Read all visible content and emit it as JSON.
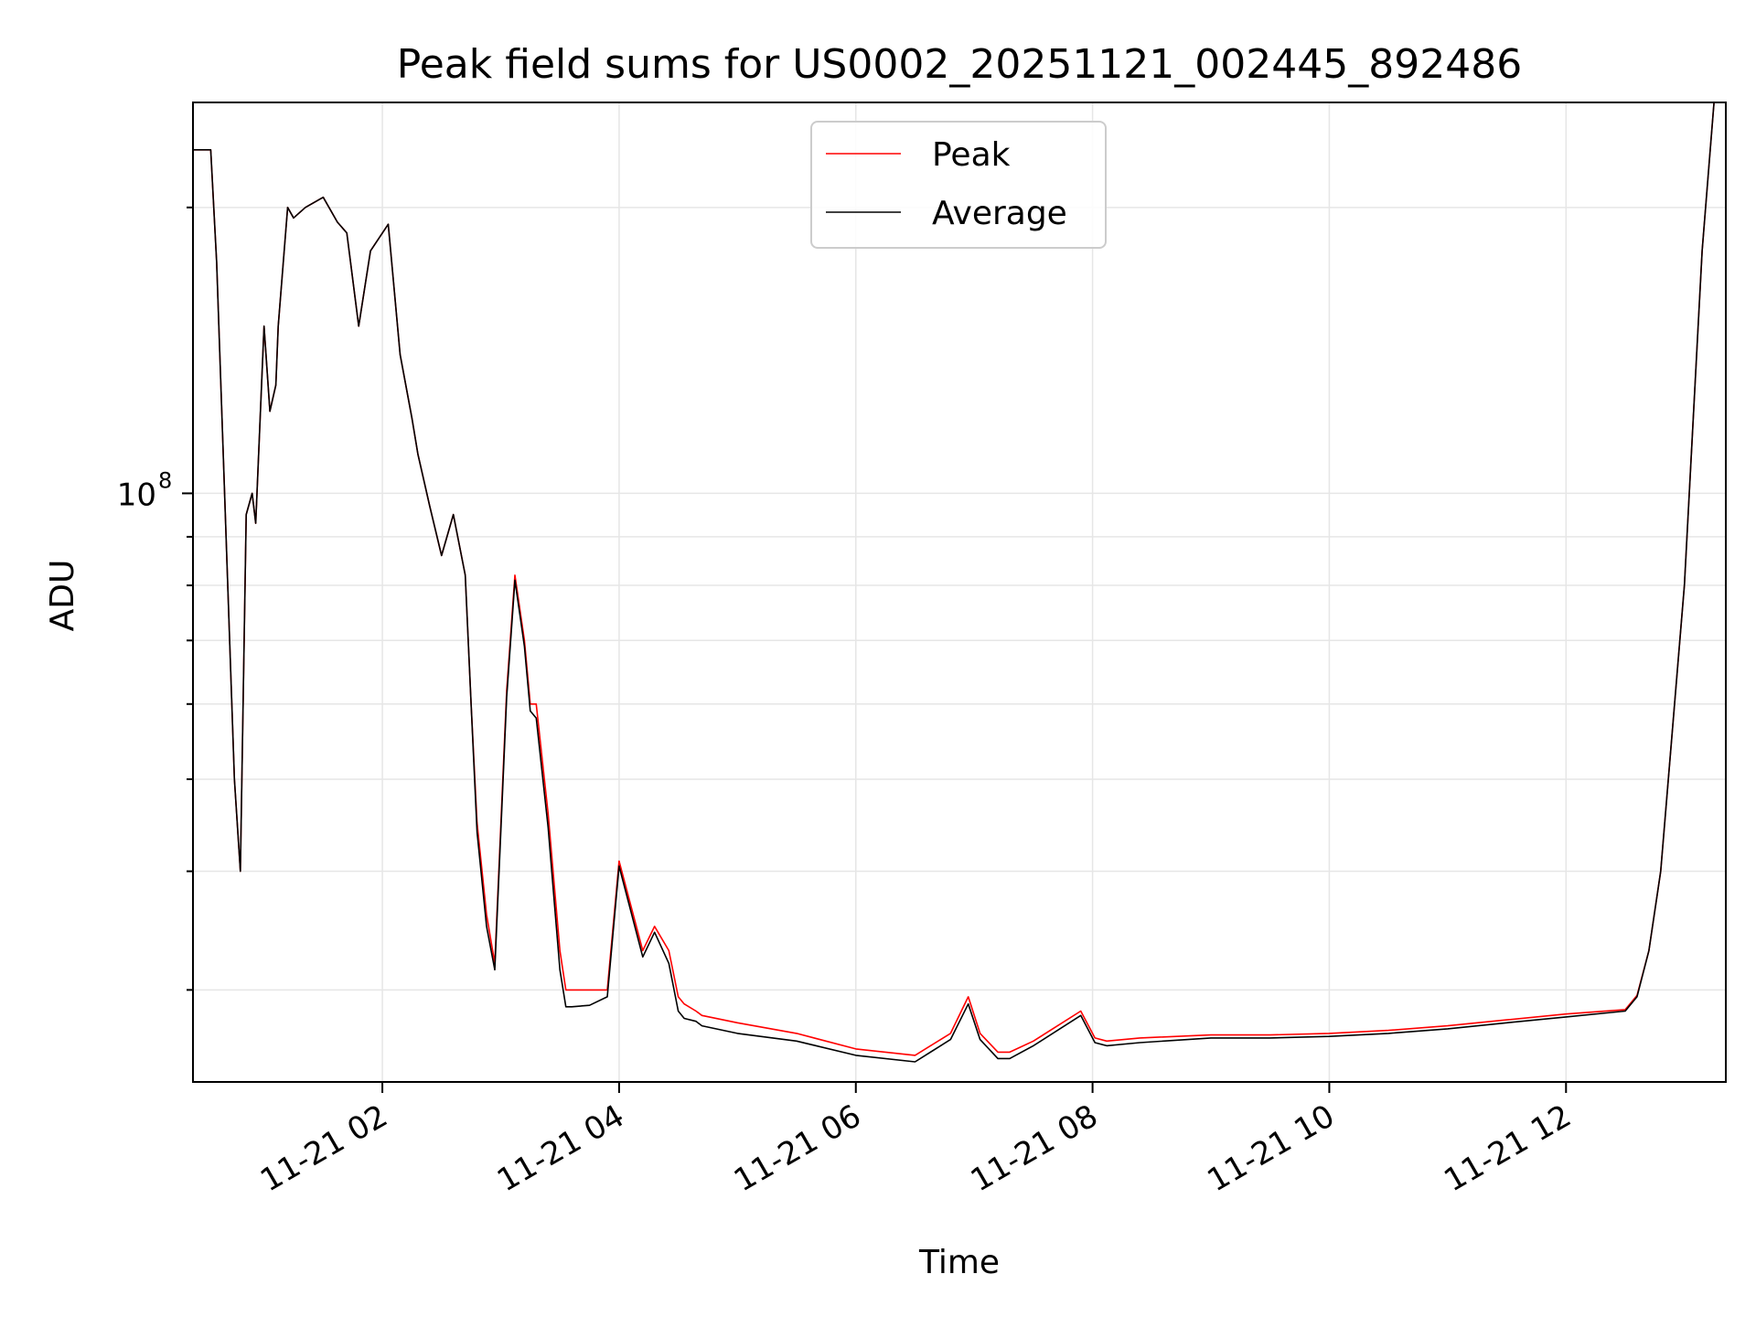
{
  "chart_data": {
    "type": "line",
    "title": "Peak field sums for US0002_20251121_002445_892486",
    "xlabel": "Time",
    "ylabel": "ADU",
    "yscale": "log",
    "grid": true,
    "legend_placement": "upper center",
    "x_ticks": [
      "11-21 02",
      "11-21 04",
      "11-21 06",
      "11-21 08",
      "11-21 10",
      "11-21 12"
    ],
    "x_tick_hours": [
      2,
      4,
      6,
      8,
      10,
      12
    ],
    "xlim_hours": [
      0.4,
      13.35
    ],
    "y_ticks": [
      {
        "value": 100000000,
        "base": "10",
        "exponent": "8"
      }
    ],
    "ylim": [
      24000000,
      258000000
    ],
    "series": [
      {
        "name": "Peak",
        "color": "#ff0000",
        "x_hours": [
          0.4,
          0.55,
          0.6,
          0.75,
          0.8,
          0.85,
          0.9,
          0.93,
          1.0,
          1.05,
          1.1,
          1.12,
          1.2,
          1.25,
          1.35,
          1.5,
          1.62,
          1.7,
          1.8,
          1.9,
          2.05,
          2.15,
          2.25,
          2.3,
          2.4,
          2.5,
          2.6,
          2.7,
          2.75,
          2.8,
          2.88,
          2.95,
          3.05,
          3.12,
          3.2,
          3.25,
          3.3,
          3.4,
          3.5,
          3.55,
          3.6,
          3.75,
          3.9,
          4.0,
          4.2,
          4.3,
          4.42,
          4.5,
          4.55,
          4.65,
          4.7,
          5.0,
          5.5,
          6.0,
          6.5,
          6.8,
          6.95,
          7.05,
          7.2,
          7.3,
          7.5,
          7.9,
          8.02,
          8.12,
          8.4,
          9.0,
          9.5,
          10.0,
          10.5,
          11.0,
          11.5,
          12.0,
          12.5,
          12.6,
          12.7,
          12.8,
          13.0,
          13.15,
          13.25,
          13.35
        ],
        "y": [
          230000000,
          230000000,
          175000000,
          50000000,
          40000000,
          95000000,
          100000000,
          93000000,
          150000000,
          122000000,
          130000000,
          150000000,
          200000000,
          195000000,
          200000000,
          205000000,
          193000000,
          188000000,
          150000000,
          180000000,
          192000000,
          140000000,
          120000000,
          110000000,
          97000000,
          86000000,
          95000000,
          82000000,
          60000000,
          45000000,
          36000000,
          32000000,
          62000000,
          82000000,
          70000000,
          60000000,
          60000000,
          46000000,
          33000000,
          30000000,
          30000000,
          30000000,
          30000000,
          41000000,
          33000000,
          35000000,
          33000000,
          29500000,
          29000000,
          28500000,
          28200000,
          27700000,
          27000000,
          26000000,
          25600000,
          27000000,
          29500000,
          27000000,
          25800000,
          25800000,
          26500000,
          28500000,
          26700000,
          26500000,
          26700000,
          26900000,
          26900000,
          27000000,
          27200000,
          27500000,
          27900000,
          28300000,
          28600000,
          29600000,
          33000000,
          40000000,
          80000000,
          180000000,
          258000000,
          258000000
        ]
      },
      {
        "name": "Average",
        "color": "#000000",
        "x_hours": [
          0.4,
          0.55,
          0.6,
          0.75,
          0.8,
          0.85,
          0.9,
          0.93,
          1.0,
          1.05,
          1.1,
          1.12,
          1.2,
          1.25,
          1.35,
          1.5,
          1.62,
          1.7,
          1.8,
          1.9,
          2.05,
          2.15,
          2.25,
          2.3,
          2.4,
          2.5,
          2.6,
          2.7,
          2.75,
          2.8,
          2.88,
          2.95,
          3.05,
          3.12,
          3.2,
          3.25,
          3.3,
          3.4,
          3.5,
          3.55,
          3.6,
          3.75,
          3.9,
          4.0,
          4.2,
          4.3,
          4.42,
          4.5,
          4.55,
          4.65,
          4.7,
          5.0,
          5.5,
          6.0,
          6.5,
          6.8,
          6.95,
          7.05,
          7.2,
          7.3,
          7.5,
          7.9,
          8.02,
          8.12,
          8.4,
          9.0,
          9.5,
          10.0,
          10.5,
          11.0,
          11.5,
          12.0,
          12.5,
          12.6,
          12.7,
          12.8,
          13.0,
          13.15,
          13.25,
          13.35
        ],
        "y": [
          230000000,
          230000000,
          175000000,
          50000000,
          40000000,
          95000000,
          100000000,
          93000000,
          150000000,
          122000000,
          130000000,
          150000000,
          200000000,
          195000000,
          200000000,
          205000000,
          193000000,
          188000000,
          150000000,
          180000000,
          192000000,
          140000000,
          120000000,
          110000000,
          97000000,
          86000000,
          95000000,
          82000000,
          60000000,
          44000000,
          35000000,
          31500000,
          61000000,
          81000000,
          69000000,
          59000000,
          58000000,
          44500000,
          31500000,
          28800000,
          28800000,
          28900000,
          29500000,
          40500000,
          32500000,
          34500000,
          32000000,
          28500000,
          28000000,
          27800000,
          27500000,
          27000000,
          26500000,
          25600000,
          25200000,
          26600000,
          29000000,
          26600000,
          25400000,
          25400000,
          26200000,
          28200000,
          26400000,
          26200000,
          26400000,
          26700000,
          26700000,
          26800000,
          27000000,
          27300000,
          27700000,
          28100000,
          28500000,
          29500000,
          33000000,
          40000000,
          80000000,
          180000000,
          258000000,
          258000000
        ]
      }
    ]
  }
}
